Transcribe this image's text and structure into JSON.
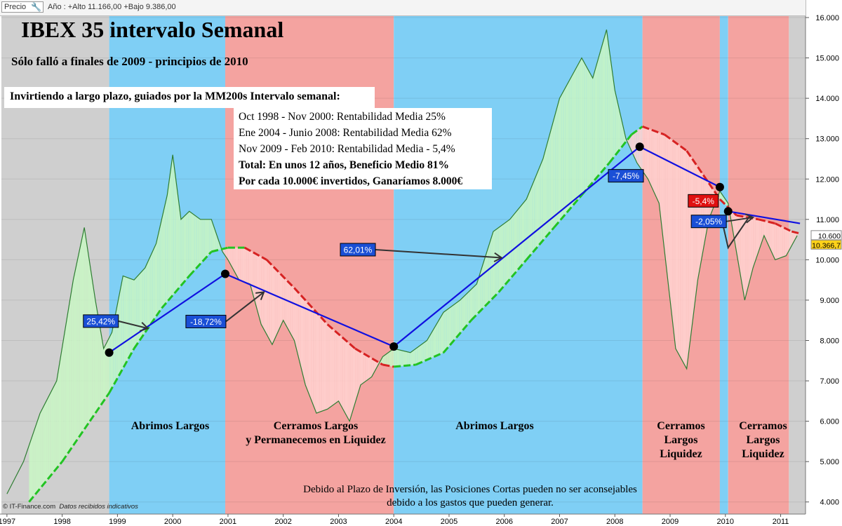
{
  "toolbar": {
    "select_label": "Precio",
    "info_text": "Año : +Alto 11.166,00 +Bajo 9.386,00"
  },
  "title": "IBEX 35 intervalo Semanal",
  "subtitle": "Sólo falló a finales de 2009 - principios de 2010",
  "info_header": "Invirtiendo a largo plazo, guiados por la MM200s Intervalo semanal:",
  "stats": [
    "Oct 1998 - Nov 2000: Rentabilidad Media 25%",
    "Ene 2004 - Junio 2008: Rentabilidad Media 62%",
    "Nov 2009 - Feb 2010: Rentabilidad Media - 5,4%",
    "Total: En unos 12 años, Beneficio Medio 81%",
    "Por cada 10.000€ invertidos, Ganaríamos 8.000€"
  ],
  "zones": [
    {
      "lines": [
        "Abrimos Largos"
      ]
    },
    {
      "lines": [
        "Cerramos Largos",
        "y Permanecemos en Liquidez"
      ]
    },
    {
      "lines": [
        "Abrimos Largos"
      ]
    },
    {
      "lines": [
        "Cerramos",
        "Largos",
        "Liquidez"
      ]
    },
    {
      "lines": [
        "Cerramos",
        "Largos",
        "Liquidez"
      ]
    }
  ],
  "note": [
    "Debido al Plazo de Inversión, las Posiciones Cortas pueden no ser aconsejables",
    "debido a los gastos que pueden generar."
  ],
  "footer": {
    "source": "© IT-Finance.com",
    "status": "Datos recibidos indicativos"
  },
  "chart_data": {
    "type": "line",
    "y_ticks": [
      "4.000",
      "5.000",
      "6.000",
      "7.000",
      "8.000",
      "9.000",
      "10.000",
      "11.000",
      "12.000",
      "13.000",
      "14.000",
      "15.000",
      "16.000"
    ],
    "x_ticks": [
      "1997",
      "1998",
      "1999",
      "2000",
      "2001",
      "2002",
      "2003",
      "2004",
      "2005",
      "2006",
      "2007",
      "2008",
      "2009",
      "2010",
      "2011"
    ],
    "ylim": [
      3700,
      16400
    ],
    "xlim": [
      1996.9,
      2011.45
    ],
    "price_tags": [
      {
        "text": "10.600",
        "value": 10600,
        "color": "#ffffff"
      },
      {
        "text": "10.366,7",
        "value": 10366.7,
        "color": "#ffd21a"
      }
    ],
    "regions": [
      {
        "from": 1996.9,
        "to": 1998.85,
        "color": "#cfcfcf"
      },
      {
        "from": 1998.85,
        "to": 2000.95,
        "color": "#7fcff5"
      },
      {
        "from": 2000.95,
        "to": 2004.0,
        "color": "#f4a3a0"
      },
      {
        "from": 2004.0,
        "to": 2008.5,
        "color": "#7fcff5"
      },
      {
        "from": 2008.5,
        "to": 2009.9,
        "color": "#f4a3a0"
      },
      {
        "from": 2009.9,
        "to": 2010.05,
        "color": "#7fcff5"
      },
      {
        "from": 2010.05,
        "to": 2011.15,
        "color": "#f4a3a0"
      },
      {
        "from": 2011.15,
        "to": 2011.45,
        "color": "#cfcfcf"
      }
    ],
    "series": [
      {
        "role": "price",
        "color": "#2e7d32",
        "x": [
          1997.0,
          1997.3,
          1997.6,
          1997.9,
          1998.2,
          1998.4,
          1998.6,
          1998.75,
          1998.9,
          1999.1,
          1999.3,
          1999.5,
          1999.7,
          1999.9,
          2000.0,
          2000.15,
          2000.3,
          2000.5,
          2000.7,
          2000.9,
          2001.0,
          2001.2,
          2001.4,
          2001.6,
          2001.8,
          2002.0,
          2002.2,
          2002.4,
          2002.6,
          2002.8,
          2003.0,
          2003.2,
          2003.4,
          2003.6,
          2003.8,
          2004.0,
          2004.3,
          2004.6,
          2004.9,
          2005.2,
          2005.5,
          2005.8,
          2006.1,
          2006.4,
          2006.7,
          2007.0,
          2007.2,
          2007.4,
          2007.6,
          2007.85,
          2008.0,
          2008.2,
          2008.4,
          2008.6,
          2008.8,
          2008.95,
          2009.1,
          2009.3,
          2009.5,
          2009.7,
          2009.9,
          2010.05,
          2010.2,
          2010.35,
          2010.5,
          2010.7,
          2010.9,
          2011.1,
          2011.3
        ],
        "y": [
          4200,
          5000,
          6200,
          7000,
          9500,
          10800,
          9000,
          7800,
          8200,
          9600,
          9500,
          9800,
          10400,
          11600,
          12600,
          11000,
          11200,
          11000,
          11000,
          10200,
          10000,
          9500,
          9400,
          8400,
          7900,
          8500,
          8000,
          6900,
          6200,
          6300,
          6500,
          6000,
          6900,
          7100,
          7600,
          7800,
          7700,
          8000,
          8700,
          9000,
          9400,
          10700,
          11000,
          11500,
          12500,
          14000,
          14500,
          15000,
          14500,
          15700,
          14200,
          13000,
          12400,
          12000,
          11400,
          9600,
          7800,
          7300,
          9500,
          11000,
          11700,
          11400,
          10200,
          9000,
          9800,
          10600,
          10000,
          10100,
          10600
        ]
      },
      {
        "role": "MM200s",
        "color": "#2ecc2e",
        "x": [
          1997.4,
          1998.0,
          1998.5,
          1998.85,
          1999.3,
          1999.8,
          2000.3,
          2000.7,
          2001.0,
          2001.3,
          2001.7,
          2002.2,
          2002.8,
          2003.3,
          2003.8,
          2004.0,
          2004.4,
          2004.9,
          2005.4,
          2005.9,
          2006.4,
          2006.9,
          2007.4,
          2007.9,
          2008.3,
          2008.5,
          2008.9,
          2009.3,
          2009.6,
          2009.9,
          2010.2,
          2010.6,
          2010.9,
          2011.2,
          2011.35
        ],
        "y": [
          4000,
          5000,
          6000,
          6700,
          7800,
          8800,
          9600,
          10200,
          10300,
          10300,
          10000,
          9300,
          8400,
          7800,
          7400,
          7350,
          7400,
          7700,
          8500,
          9200,
          10000,
          10800,
          11600,
          12400,
          13100,
          13300,
          13100,
          12700,
          12100,
          11500,
          11100,
          11000,
          10900,
          10700,
          10650
        ]
      }
    ],
    "trade_segments": [
      {
        "x": [
          1998.85,
          2000.95
        ],
        "y": [
          7700,
          9650
        ]
      },
      {
        "x": [
          2000.95,
          2004.0
        ],
        "y": [
          9650,
          7850
        ]
      },
      {
        "x": [
          2004.0,
          2008.45
        ],
        "y": [
          7850,
          12800
        ]
      },
      {
        "x": [
          2008.45,
          2009.9
        ],
        "y": [
          12800,
          11800
        ]
      },
      {
        "x": [
          2010.05,
          2011.35
        ],
        "y": [
          11200,
          10900
        ]
      }
    ],
    "trade_points": [
      {
        "x": 1998.85,
        "y": 7700
      },
      {
        "x": 2000.95,
        "y": 9650
      },
      {
        "x": 2004.0,
        "y": 7850
      },
      {
        "x": 2008.45,
        "y": 12800
      },
      {
        "x": 2009.9,
        "y": 11800
      },
      {
        "x": 2010.05,
        "y": 11200
      }
    ],
    "labels": [
      {
        "text": "25,42%",
        "x": 1998.7,
        "y": 8480,
        "color": "#1a4fd6",
        "arrow_to": [
          1999.55,
          8300
        ]
      },
      {
        "text": "-18,72%",
        "x": 2000.6,
        "y": 8470,
        "color": "#1a4fd6",
        "arrow_to": [
          2001.65,
          9200
        ]
      },
      {
        "text": "62,01%",
        "x": 2003.35,
        "y": 10250,
        "color": "#1a4fd6",
        "arrow_to": [
          2005.95,
          10050
        ]
      },
      {
        "text": "-7,45%",
        "x": 2008.2,
        "y": 12080,
        "color": "#1a4fd6"
      },
      {
        "text": "-5,4%",
        "x": 2009.6,
        "y": 11460,
        "color": "#e01010"
      },
      {
        "text": "-2,05%",
        "x": 2009.7,
        "y": 10950,
        "color": "#1a4fd6",
        "arrow_to": [
          2010.5,
          11050
        ]
      }
    ]
  }
}
